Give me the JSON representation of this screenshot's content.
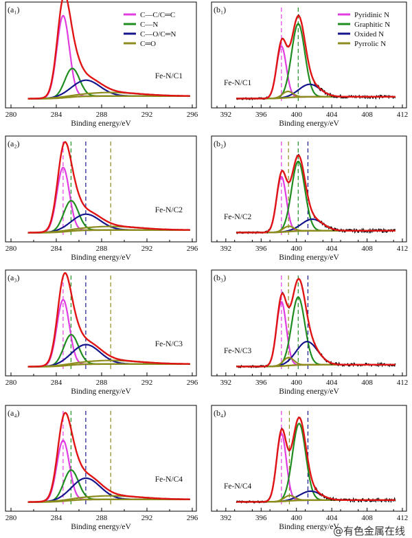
{
  "watermark": "@有色金属在线",
  "chart_data": [
    {
      "id": "a1",
      "type": "line",
      "panel_label": "(a₁)",
      "sample": "Fe-N/C1",
      "xlabel": "Binding energy/eV",
      "xlim": [
        280,
        296
      ],
      "xticks": [
        280,
        284,
        288,
        292,
        296
      ],
      "legend": [
        "C—C/C═C",
        "C—N",
        "C—O/C═N",
        "C═O"
      ],
      "colors": [
        "#e03ce0",
        "#1e8c1e",
        "#14148c",
        "#8c8c1e"
      ],
      "components": [
        {
          "center": 284.6,
          "height": 0.92
        },
        {
          "center": 285.4,
          "height": 0.32
        },
        {
          "center": 286.6,
          "height": 0.18
        },
        {
          "center": 288.8,
          "height": 0.04
        }
      ],
      "dashed_lines": []
    },
    {
      "id": "b1",
      "type": "line",
      "panel_label": "(b₁)",
      "sample": "Fe-N/C1",
      "xlabel": "Binding energy/eV",
      "xlim": [
        391,
        412
      ],
      "xticks": [
        392,
        396,
        400,
        404,
        408,
        412
      ],
      "legend": [
        "Pyridinic N",
        "Graphitic N",
        "Oxided N",
        "Pyrrolic N"
      ],
      "colors": [
        "#e03ce0",
        "#1e8c1e",
        "#14148c",
        "#8c8c1e"
      ],
      "components": [
        {
          "center": 398.3,
          "height": 0.58
        },
        {
          "center": 400.2,
          "height": 0.82
        },
        {
          "center": 401.5,
          "height": 0.14
        },
        {
          "center": 399.0,
          "height": 0.07
        }
      ],
      "dashed_lines": [
        398.3,
        400.2
      ]
    },
    {
      "id": "a2",
      "type": "line",
      "panel_label": "(a₂)",
      "sample": "Fe-N/C2",
      "xlabel": "Binding energy/eV",
      "xlim": [
        280,
        296
      ],
      "xticks": [
        280,
        284,
        288,
        292,
        296
      ],
      "colors": [
        "#e03ce0",
        "#1e8c1e",
        "#14148c",
        "#8c8c1e"
      ],
      "components": [
        {
          "center": 284.6,
          "height": 0.72
        },
        {
          "center": 285.3,
          "height": 0.34
        },
        {
          "center": 286.6,
          "height": 0.18
        },
        {
          "center": 288.8,
          "height": 0.04
        }
      ],
      "dashed_lines": [
        284.6,
        285.3,
        286.6,
        288.8
      ]
    },
    {
      "id": "b2",
      "type": "line",
      "panel_label": "(b₂)",
      "sample": "Fe-N/C2",
      "xlabel": "Binding energy/eV",
      "xlim": [
        391,
        412
      ],
      "xticks": [
        392,
        396,
        400,
        404,
        408,
        412
      ],
      "colors": [
        "#e03ce0",
        "#1e8c1e",
        "#14148c",
        "#8c8c1e"
      ],
      "components": [
        {
          "center": 398.3,
          "height": 0.62
        },
        {
          "center": 400.2,
          "height": 0.78
        },
        {
          "center": 401.8,
          "height": 0.13
        },
        {
          "center": 399.1,
          "height": 0.06
        }
      ],
      "dashed_lines": [
        398.3,
        399.1,
        400.2,
        401.3
      ]
    },
    {
      "id": "a3",
      "type": "line",
      "panel_label": "(a₃)",
      "sample": "Fe-N/C3",
      "xlabel": "Binding energy/eV",
      "xlim": [
        280,
        296
      ],
      "xticks": [
        280,
        284,
        288,
        292,
        296
      ],
      "colors": [
        "#e03ce0",
        "#1e8c1e",
        "#14148c",
        "#8c8c1e"
      ],
      "components": [
        {
          "center": 284.6,
          "height": 0.74
        },
        {
          "center": 285.3,
          "height": 0.34
        },
        {
          "center": 286.6,
          "height": 0.22
        },
        {
          "center": 288.8,
          "height": 0.04
        }
      ],
      "dashed_lines": [
        284.6,
        285.3,
        286.6,
        288.8
      ]
    },
    {
      "id": "b3",
      "type": "line",
      "panel_label": "(b₃)",
      "sample": "Fe-N/C3",
      "xlabel": "Binding energy/eV",
      "xlim": [
        391,
        412
      ],
      "xticks": [
        392,
        396,
        400,
        404,
        408,
        412
      ],
      "colors": [
        "#e03ce0",
        "#1e8c1e",
        "#14148c",
        "#8c8c1e"
      ],
      "components": [
        {
          "center": 398.3,
          "height": 0.72
        },
        {
          "center": 400.2,
          "height": 0.76
        },
        {
          "center": 401.2,
          "height": 0.26
        },
        {
          "center": 399.1,
          "height": 0.09
        }
      ],
      "dashed_lines": [
        398.3,
        399.1,
        400.2,
        401.3
      ]
    },
    {
      "id": "a4",
      "type": "line",
      "panel_label": "(a₄)",
      "sample": "Fe-N/C4",
      "xlabel": "Binding energy/eV",
      "xlim": [
        280,
        296
      ],
      "xticks": [
        280,
        284,
        288,
        292,
        296
      ],
      "colors": [
        "#e03ce0",
        "#1e8c1e",
        "#14148c",
        "#8c8c1e"
      ],
      "components": [
        {
          "center": 284.6,
          "height": 0.68
        },
        {
          "center": 285.3,
          "height": 0.34
        },
        {
          "center": 286.6,
          "height": 0.24
        },
        {
          "center": 288.8,
          "height": 0.04
        }
      ],
      "dashed_lines": [
        284.6,
        285.3,
        286.6,
        288.8
      ]
    },
    {
      "id": "b4",
      "type": "line",
      "panel_label": "(b₄)",
      "sample": "Fe-N/C4",
      "xlabel": "Binding energy/eV",
      "xlim": [
        391,
        412
      ],
      "xticks": [
        392,
        396,
        400,
        404,
        408,
        412
      ],
      "colors": [
        "#e03ce0",
        "#1e8c1e",
        "#14148c",
        "#8c8c1e"
      ],
      "components": [
        {
          "center": 398.3,
          "height": 0.76
        },
        {
          "center": 400.3,
          "height": 0.86
        },
        {
          "center": 401.6,
          "height": 0.1
        },
        {
          "center": 399.2,
          "height": 0.06
        }
      ],
      "dashed_lines": [
        398.3,
        399.2,
        401.3
      ]
    }
  ]
}
